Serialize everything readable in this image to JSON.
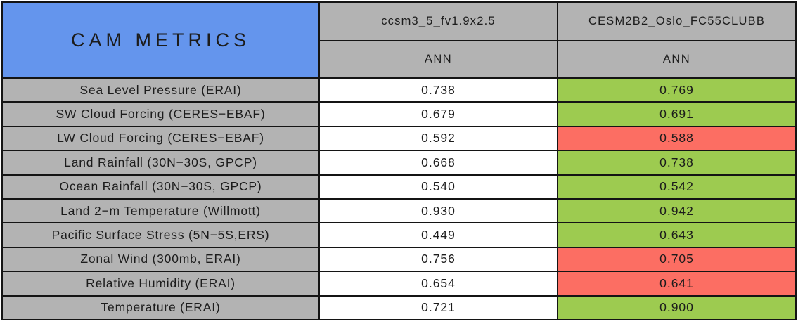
{
  "colors": {
    "title_bg": "#6495ED",
    "header_bg": "#B3B3B3",
    "metric_bg": "#B3B3B3",
    "neutral_cell": "#FFFFFF",
    "better_cell": "#9DCB50",
    "worse_cell": "#FC6E63",
    "border": "#141414",
    "text": "#1C1C1C"
  },
  "table": {
    "title": "CAM METRICS",
    "columns": [
      {
        "model": "ccsm3_5_fv1.9x2.5",
        "period": "ANN"
      },
      {
        "model": "CESM2B2_Oslo_FC55CLUBB",
        "period": "ANN"
      }
    ],
    "rows": [
      {
        "metric": "Sea Level Pressure (ERAI)",
        "values": [
          {
            "value": "0.738",
            "status": "neutral"
          },
          {
            "value": "0.769",
            "status": "better"
          }
        ]
      },
      {
        "metric": "SW Cloud Forcing (CERES−EBAF)",
        "values": [
          {
            "value": "0.679",
            "status": "neutral"
          },
          {
            "value": "0.691",
            "status": "better"
          }
        ]
      },
      {
        "metric": "LW Cloud Forcing (CERES−EBAF)",
        "values": [
          {
            "value": "0.592",
            "status": "neutral"
          },
          {
            "value": "0.588",
            "status": "worse"
          }
        ]
      },
      {
        "metric": "Land Rainfall (30N−30S, GPCP)",
        "values": [
          {
            "value": "0.668",
            "status": "neutral"
          },
          {
            "value": "0.738",
            "status": "better"
          }
        ]
      },
      {
        "metric": "Ocean Rainfall (30N−30S, GPCP)",
        "values": [
          {
            "value": "0.540",
            "status": "neutral"
          },
          {
            "value": "0.542",
            "status": "better"
          }
        ]
      },
      {
        "metric": "Land 2−m Temperature (Willmott)",
        "values": [
          {
            "value": "0.930",
            "status": "neutral"
          },
          {
            "value": "0.942",
            "status": "better"
          }
        ]
      },
      {
        "metric": "Pacific Surface Stress (5N−5S,ERS)",
        "values": [
          {
            "value": "0.449",
            "status": "neutral"
          },
          {
            "value": "0.643",
            "status": "better"
          }
        ]
      },
      {
        "metric": "Zonal Wind (300mb, ERAI)",
        "values": [
          {
            "value": "0.756",
            "status": "neutral"
          },
          {
            "value": "0.705",
            "status": "worse"
          }
        ]
      },
      {
        "metric": "Relative Humidity (ERAI)",
        "values": [
          {
            "value": "0.654",
            "status": "neutral"
          },
          {
            "value": "0.641",
            "status": "worse"
          }
        ]
      },
      {
        "metric": "Temperature (ERAI)",
        "values": [
          {
            "value": "0.721",
            "status": "neutral"
          },
          {
            "value": "0.900",
            "status": "better"
          }
        ]
      }
    ]
  },
  "chart_data": {
    "type": "table",
    "title": "CAM METRICS",
    "columns": [
      "ccsm3_5_fv1.9x2.5 (ANN)",
      "CESM2B2_Oslo_FC55CLUBB (ANN)"
    ],
    "row_labels": [
      "Sea Level Pressure (ERAI)",
      "SW Cloud Forcing (CERES−EBAF)",
      "LW Cloud Forcing (CERES−EBAF)",
      "Land Rainfall (30N−30S, GPCP)",
      "Ocean Rainfall (30N−30S, GPCP)",
      "Land 2−m Temperature (Willmott)",
      "Pacific Surface Stress (5N−5S,ERS)",
      "Zonal Wind (300mb, ERAI)",
      "Relative Humidity (ERAI)",
      "Temperature (ERAI)"
    ],
    "values": [
      [
        0.738,
        0.769
      ],
      [
        0.679,
        0.691
      ],
      [
        0.592,
        0.588
      ],
      [
        0.668,
        0.738
      ],
      [
        0.54,
        0.542
      ],
      [
        0.93,
        0.942
      ],
      [
        0.449,
        0.643
      ],
      [
        0.756,
        0.705
      ],
      [
        0.654,
        0.641
      ],
      [
        0.721,
        0.9
      ]
    ],
    "cell_highlight": [
      [
        "none",
        "green"
      ],
      [
        "none",
        "green"
      ],
      [
        "none",
        "red"
      ],
      [
        "none",
        "green"
      ],
      [
        "none",
        "green"
      ],
      [
        "none",
        "green"
      ],
      [
        "none",
        "green"
      ],
      [
        "none",
        "red"
      ],
      [
        "none",
        "red"
      ],
      [
        "none",
        "green"
      ]
    ],
    "highlight_meaning": {
      "green": "second model better",
      "red": "second model worse"
    }
  }
}
